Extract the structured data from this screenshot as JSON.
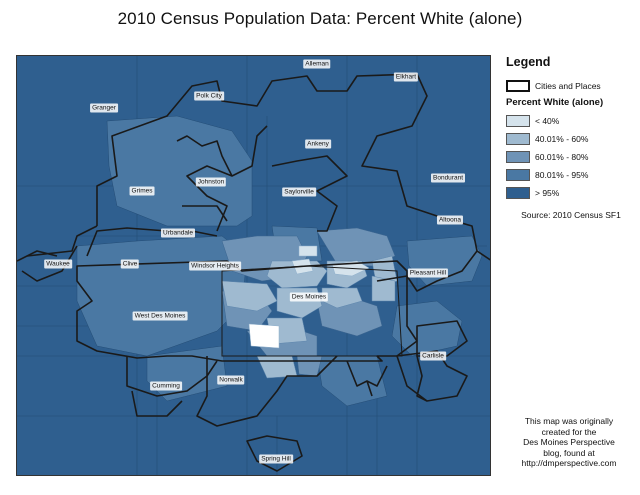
{
  "title": "2010 Census Population Data: Percent White (alone)",
  "legend": {
    "title": "Legend",
    "outline_label": "Cities and Places",
    "subtitle": "Percent White (alone)",
    "classes": [
      {
        "label": "< 40%",
        "color": "#d5e3ec"
      },
      {
        "label": "40.01% - 60%",
        "color": "#9fbad0"
      },
      {
        "label": "60.01% - 80%",
        "color": "#6f93b6"
      },
      {
        "label": "80.01% - 95%",
        "color": "#4a78a3"
      },
      {
        "label": "> 95%",
        "color": "#2f5f8f"
      }
    ]
  },
  "source": "Source: 2010 Census SF1",
  "credit": [
    "This map was originally",
    "created for the",
    "Des Moines Perspective",
    "blog, found at",
    "http://dmperspective.com"
  ],
  "places": [
    "Alleman",
    "Elkhart",
    "Polk City",
    "Granger",
    "Ankeny",
    "Grimes",
    "Johnston",
    "Saylorville",
    "Bondurant",
    "Altoona",
    "Urbandale",
    "Waukee",
    "Clive",
    "Windsor Heights",
    "Pleasant Hill",
    "Des Moines",
    "West Des Moines",
    "Carlisle",
    "Cumming",
    "Norwalk",
    "Spring Hill"
  ]
}
